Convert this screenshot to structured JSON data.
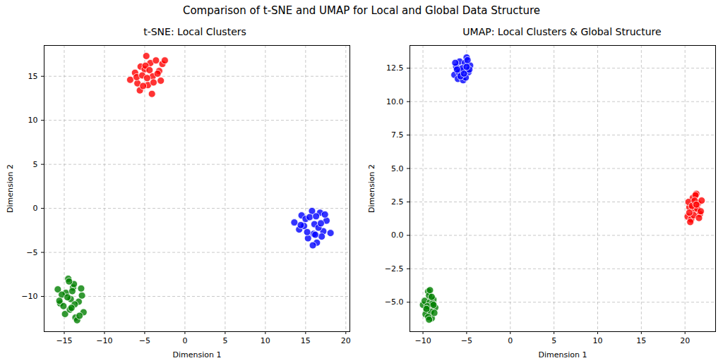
{
  "title": "Comparison of t-SNE and UMAP for Local and Global Data Structure",
  "chart_data": [
    {
      "type": "scatter",
      "title": "t-SNE: Local Clusters",
      "x_label": "Dimension 1",
      "y_label": "Dimension 2",
      "xlim": [
        -17.5,
        20.5
      ],
      "ylim": [
        -14,
        18.5
      ],
      "xticks": [
        -15,
        -10,
        -5,
        0,
        5,
        10,
        15,
        20
      ],
      "yticks": [
        -10,
        -5,
        0,
        5,
        10,
        15
      ],
      "grid": true,
      "marker": "o",
      "series": [
        {
          "color": "red",
          "x": [
            -6.8,
            -6.2,
            -5.9,
            -5.5,
            -5.0,
            -4.8,
            -4.3,
            -4.0,
            -3.6,
            -3.2,
            -2.8,
            -2.5,
            -5.6,
            -4.6,
            -3.9,
            -5.2,
            -4.1,
            -3.4,
            -6.0,
            -4.9,
            -4.4,
            -3.0,
            -5.3,
            -4.7
          ],
          "y": [
            14.6,
            15.4,
            14.2,
            16.1,
            15.8,
            17.3,
            16.5,
            15.0,
            16.8,
            15.6,
            16.4,
            16.8,
            13.4,
            14.0,
            14.3,
            13.9,
            13.0,
            15.3,
            14.9,
            16.2,
            15.7,
            14.5,
            15.1,
            14.8
          ]
        },
        {
          "color": "blue",
          "x": [
            13.6,
            14.2,
            14.5,
            15.0,
            15.3,
            15.8,
            16.1,
            16.4,
            16.8,
            17.2,
            17.6,
            18.1,
            14.8,
            15.5,
            16.0,
            16.6,
            17.0,
            15.2,
            16.3,
            17.4,
            14.4,
            15.9,
            16.9,
            16.2
          ],
          "y": [
            -1.6,
            -2.4,
            -0.8,
            -1.2,
            -3.4,
            -0.3,
            -1.8,
            -3.9,
            -0.5,
            -2.6,
            -1.4,
            -2.8,
            -2.0,
            -1.0,
            -2.9,
            -2.2,
            -3.2,
            -2.7,
            -0.9,
            -0.7,
            -1.9,
            -4.2,
            -1.7,
            -3.0
          ]
        },
        {
          "color": "green",
          "x": [
            -15.8,
            -15.5,
            -15.1,
            -14.8,
            -14.5,
            -14.2,
            -13.9,
            -13.6,
            -13.2,
            -12.8,
            -12.6,
            -15.3,
            -14.9,
            -14.3,
            -13.8,
            -13.4,
            -14.6,
            -14.0,
            -13.1,
            -15.6,
            -12.9,
            -14.4,
            -13.7,
            -14.1
          ],
          "y": [
            -9.2,
            -10.8,
            -11.1,
            -9.6,
            -8.0,
            -10.3,
            -9.0,
            -12.4,
            -10.6,
            -9.9,
            -11.8,
            -9.8,
            -12.0,
            -11.5,
            -8.6,
            -12.7,
            -10.1,
            -9.4,
            -12.2,
            -10.5,
            -9.1,
            -8.3,
            -10.9,
            -11.3
          ]
        }
      ]
    },
    {
      "type": "scatter",
      "title": "UMAP: Local Clusters & Global Structure",
      "x_label": "Dimension 1",
      "y_label": "Dimension 2",
      "xlim": [
        -11.5,
        23.5
      ],
      "ylim": [
        -7.2,
        14.2
      ],
      "xticks": [
        -10,
        -5,
        0,
        5,
        10,
        15,
        20
      ],
      "yticks": [
        {
          "value": -5,
          "label": "−5.0"
        },
        {
          "value": -2.5,
          "label": "−2.5"
        },
        {
          "value": 0,
          "label": "0.0"
        },
        {
          "value": 2.5,
          "label": "2.5"
        },
        {
          "value": 5,
          "label": "5.0"
        },
        {
          "value": 7.5,
          "label": "7.5"
        },
        {
          "value": 10,
          "label": "10.0"
        },
        {
          "value": 12.5,
          "label": "12.5"
        }
      ],
      "grid": true,
      "marker": "o",
      "series": [
        {
          "color": "blue",
          "x": [
            -6.4,
            -6.2,
            -6.0,
            -5.8,
            -5.6,
            -5.4,
            -5.2,
            -5.0,
            -4.8,
            -4.6,
            -6.3,
            -5.9,
            -5.5,
            -5.1,
            -4.9,
            -5.7,
            -5.3,
            -4.7,
            -6.1,
            -5.0
          ],
          "y": [
            12.0,
            12.6,
            11.7,
            13.0,
            12.3,
            11.6,
            12.9,
            13.3,
            12.2,
            12.7,
            12.9,
            12.2,
            12.5,
            11.8,
            13.1,
            11.9,
            12.1,
            12.4,
            12.4,
            12.6
          ]
        },
        {
          "color": "red",
          "x": [
            20.3,
            20.5,
            20.7,
            20.9,
            21.1,
            21.3,
            21.5,
            21.7,
            21.9,
            20.6,
            21.0,
            21.4,
            21.8,
            20.4,
            21.2,
            20.8,
            21.6,
            21.1,
            20.5,
            21.3
          ],
          "y": [
            1.4,
            2.1,
            1.2,
            2.8,
            1.9,
            3.1,
            2.4,
            1.6,
            2.6,
            1.0,
            1.5,
            2.0,
            1.8,
            2.5,
            3.0,
            2.2,
            1.3,
            2.6,
            1.7,
            2.3
          ]
        },
        {
          "color": "green",
          "x": [
            -10.0,
            -9.8,
            -9.6,
            -9.4,
            -9.2,
            -9.0,
            -8.8,
            -8.6,
            -9.7,
            -9.3,
            -9.1,
            -8.9,
            -9.5,
            -9.2,
            -8.7,
            -9.4,
            -9.0,
            -9.6,
            -8.8,
            -9.3
          ],
          "y": [
            -5.2,
            -4.9,
            -5.6,
            -4.2,
            -5.0,
            -6.2,
            -4.8,
            -5.4,
            -5.9,
            -4.5,
            -5.7,
            -5.1,
            -5.3,
            -4.1,
            -5.8,
            -6.1,
            -4.6,
            -5.5,
            -5.2,
            -6.3
          ]
        }
      ]
    }
  ]
}
